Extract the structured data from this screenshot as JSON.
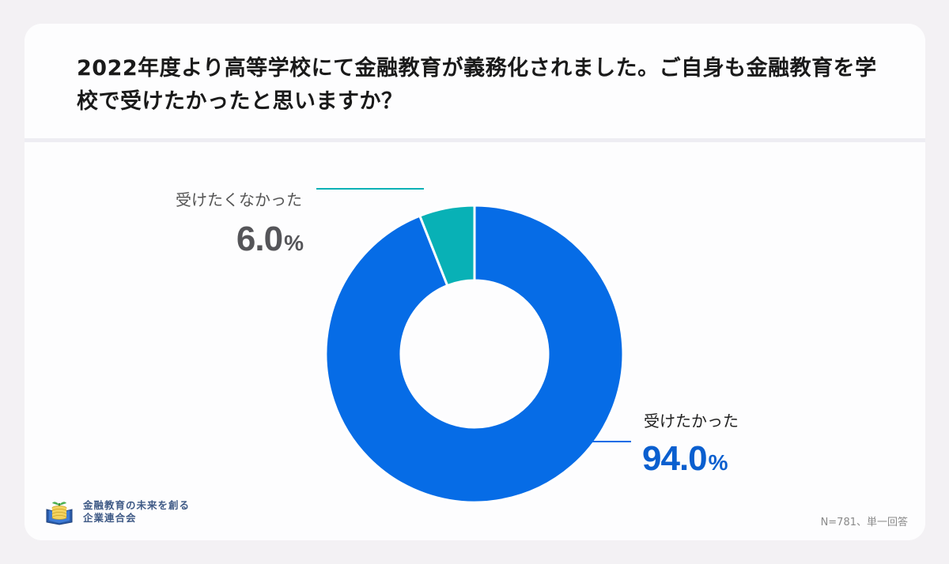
{
  "header": {
    "title": "2022年度より高等学校にて金融教育が義務化されました。ご自身も金融教育を学校で受けたかったと思いますか？"
  },
  "chart_data": {
    "type": "pie",
    "variant": "donut",
    "title": "2022年度より高等学校にて金融教育が義務化されました。ご自身も金融教育を学校で受けたかったと思いますか？",
    "categories": [
      "受けたかった",
      "受けたくなかった"
    ],
    "values": [
      94.0,
      6.0
    ],
    "unit": "%",
    "colors": [
      "#066ce6",
      "#08b1b6"
    ],
    "labels": [
      {
        "category": "受けたかった",
        "value": "94.0",
        "sign": "%"
      },
      {
        "category": "受けたくなかった",
        "value": "6.0",
        "sign": "%"
      }
    ],
    "note": "N=781、単一回答"
  },
  "colors": {
    "primary_blue": "#066ce6",
    "teal": "#08b1b6",
    "pct_blue": "#0a5fcf",
    "pct_gray": "#555559",
    "background": "#f3f1f4"
  },
  "footer": {
    "logo_icon": "coin-book-sprout-icon",
    "org_line1": "金融教育の未来を創る",
    "org_line2": "企業連合会",
    "note": "N=781、単一回答"
  }
}
